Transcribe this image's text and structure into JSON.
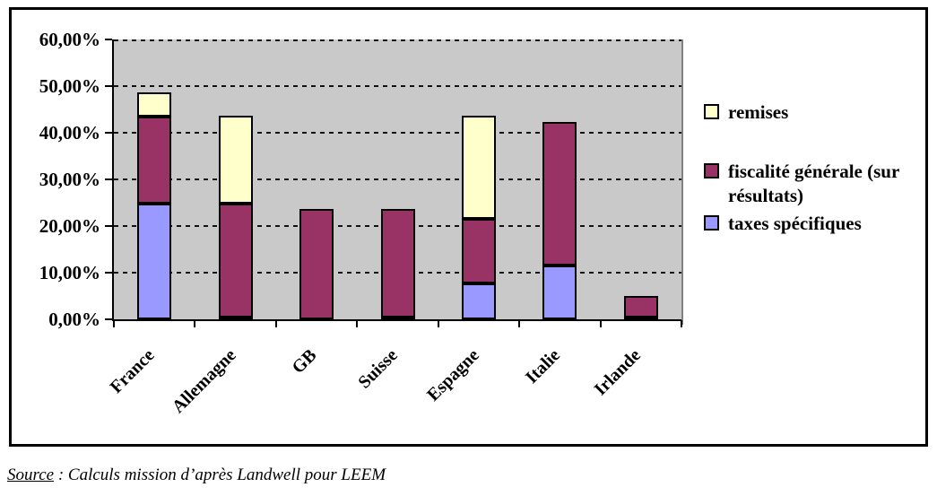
{
  "source": {
    "label": "Source",
    "text": " : Calculs mission d’après Landwell pour LEEM"
  },
  "chart_data": {
    "type": "bar",
    "stacked": true,
    "title": "",
    "categories": [
      "France",
      "Allemagne",
      "GB",
      "Suisse",
      "Espagne",
      "Italie",
      "Irlande"
    ],
    "series": [
      {
        "name": "taxes spécifiques",
        "color": "#9999FF",
        "values": [
          24.9,
          0.3,
          0,
          0.3,
          7.7,
          11.6,
          0.3
        ]
      },
      {
        "name": "fiscalité générale (sur résultats)",
        "color": "#993366",
        "values": [
          18.5,
          24.6,
          23.6,
          23.3,
          13.9,
          30.8,
          4.8
        ]
      },
      {
        "name": "remises",
        "color": "#FFFFCC",
        "values": [
          5.2,
          18.8,
          0,
          0,
          22.1,
          0,
          0
        ]
      }
    ],
    "legend": [
      {
        "label": "remises",
        "color": "#FFFFCC"
      },
      {
        "label": "fiscalité générale (sur résultats)",
        "color": "#993366"
      },
      {
        "label": "taxes spécifiques",
        "color": "#9999FF"
      }
    ],
    "y_axis": {
      "min": 0,
      "max": 60,
      "step": 10,
      "tick_labels": [
        "0,00%",
        "10,00%",
        "20,00%",
        "30,00%",
        "40,00%",
        "50,00%",
        "60,00%"
      ]
    },
    "legend_position": "right",
    "grid": true,
    "colors": {
      "plot_bg": "#C9C9C9",
      "grid": "#111111",
      "axis": "#000000",
      "plot_right_edge": "#808080"
    }
  }
}
